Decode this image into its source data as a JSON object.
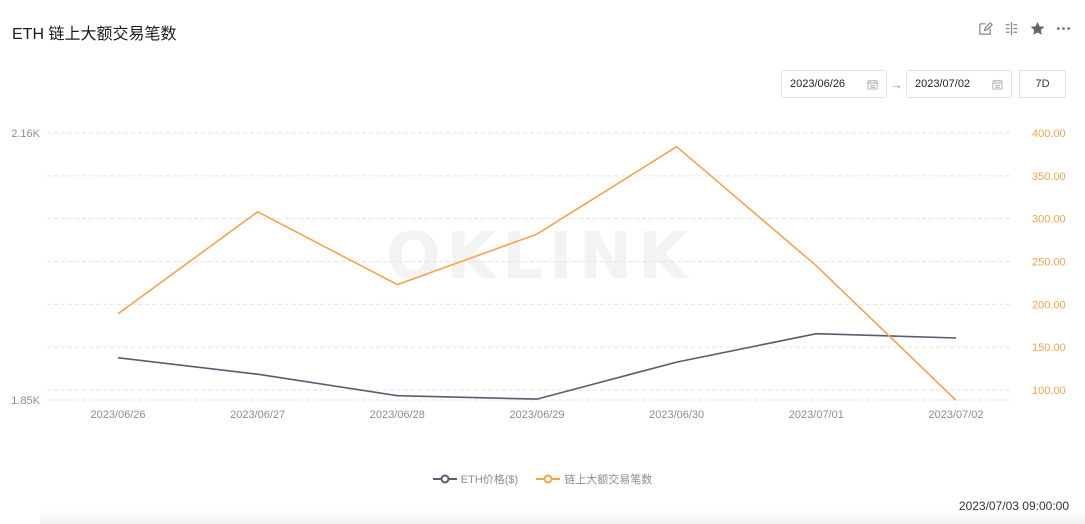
{
  "header": {
    "title": "ETH 链上大额交易笔数",
    "icons": [
      "edit-icon",
      "compare-icon",
      "star-icon",
      "more-icon"
    ]
  },
  "range": {
    "start_date": "2023/06/26",
    "end_date": "2023/07/02",
    "preset_label": "7D",
    "arrow": "→"
  },
  "legend": {
    "series1": "ETH价格($)",
    "series2": "链上大额交易笔数"
  },
  "footer": {
    "timestamp": "2023/07/03 09:00:00"
  },
  "watermark": "OKLINK",
  "colors": {
    "price": "#5b5b73",
    "count": "#f7a34a",
    "grid": "#e2e3ee",
    "left_axis_text": "#8c8c99",
    "right_axis_text": "#f7a34a"
  },
  "chart_data": {
    "type": "line",
    "title": "ETH 链上大额交易笔数",
    "categories": [
      "2023/06/26",
      "2023/06/27",
      "2023/06/28",
      "2023/06/29",
      "2023/06/30",
      "2023/07/01",
      "2023/07/02"
    ],
    "series": [
      {
        "name": "ETH价格($)",
        "axis": "left",
        "color": "#5b5b73",
        "values": [
          1899,
          1880,
          1855,
          1851,
          1894,
          1927,
          1922
        ]
      },
      {
        "name": "链上大额交易笔数",
        "axis": "right",
        "color": "#f7a34a",
        "values": [
          189,
          308,
          223,
          282,
          384,
          245,
          88
        ]
      }
    ],
    "left_axis": {
      "ticks": [
        "2.16K",
        "1.85K"
      ],
      "range": [
        1850,
        2160
      ]
    },
    "right_axis": {
      "ticks": [
        "400.00",
        "350.00",
        "300.00",
        "250.00",
        "200.00",
        "150.00",
        "100.00"
      ],
      "range": [
        88,
        400
      ]
    },
    "xlabel": "",
    "ylabel": "",
    "grid": true,
    "legend_position": "bottom"
  }
}
